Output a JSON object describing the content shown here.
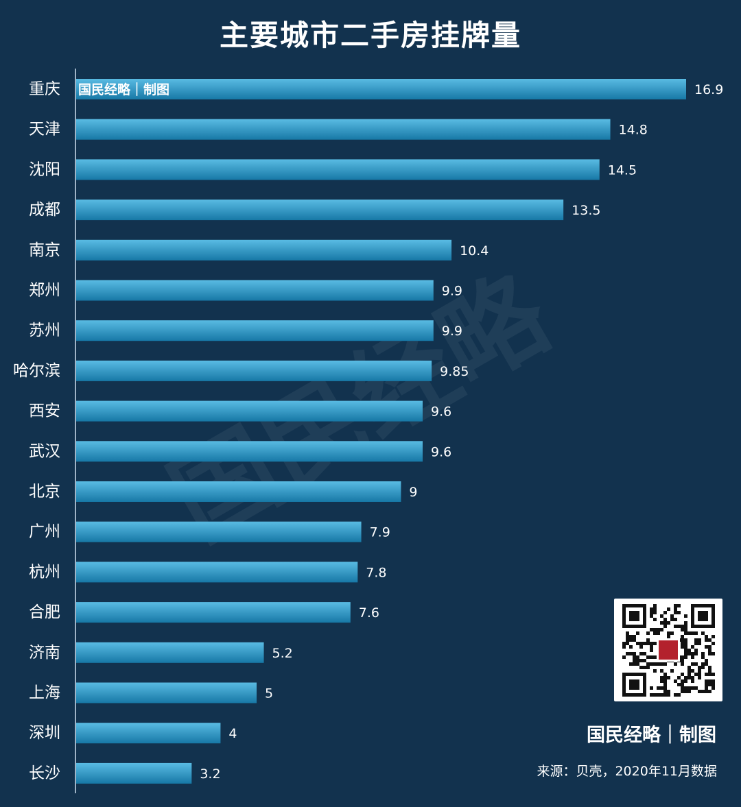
{
  "watermark": "国民经略",
  "brand_on_bar": "国民经略｜制图",
  "brand": "国民经略｜制图",
  "source": "来源：贝壳，2020年11月数据",
  "colors": {
    "background": "#12324e",
    "bar_top": "#4fb3dd",
    "bar_bottom": "#1a7eab",
    "axis": "#9fb3c6"
  },
  "chart_data": {
    "type": "bar",
    "orientation": "horizontal",
    "title": "主要城市二手房挂牌量",
    "categories": [
      "重庆",
      "天津",
      "沈阳",
      "成都",
      "南京",
      "郑州",
      "苏州",
      "哈尔滨",
      "西安",
      "武汉",
      "北京",
      "广州",
      "杭州",
      "合肥",
      "济南",
      "上海",
      "深圳",
      "长沙"
    ],
    "values": [
      16.9,
      14.8,
      14.5,
      13.5,
      10.4,
      9.9,
      9.9,
      9.85,
      9.6,
      9.6,
      9,
      7.9,
      7.8,
      7.6,
      5.2,
      5,
      4,
      3.2
    ],
    "value_labels": [
      "16.9",
      "14.8",
      "14.5",
      "13.5",
      "10.4",
      "9.9",
      "9.9",
      "9.85",
      "9.6",
      "9.6",
      "9",
      "7.9",
      "7.8",
      "7.6",
      "5.2",
      "5",
      "4",
      "3.2"
    ],
    "xlim": [
      0,
      16.9
    ],
    "grid": false,
    "legend": "none"
  }
}
